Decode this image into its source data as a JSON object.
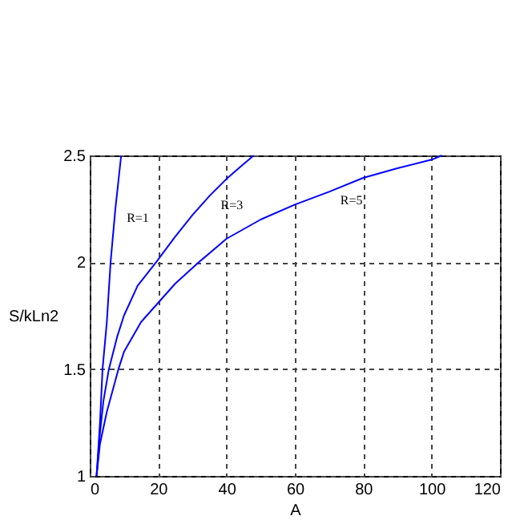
{
  "chart_data": {
    "type": "line",
    "xlabel": "A",
    "ylabel": "S/kLn2",
    "series": [
      {
        "name": "R=1",
        "color": "#0000ff",
        "x": [
          2,
          3,
          3.75,
          5,
          6.1,
          7.5,
          9.2
        ],
        "values": [
          1,
          1.25,
          1.5,
          1.72,
          2,
          2.25,
          2.5
        ]
      },
      {
        "name": "R=3",
        "color": "#0000ff",
        "x": [
          2,
          3,
          4,
          5.6,
          8,
          10,
          14,
          19.4,
          25,
          30,
          35,
          40,
          45,
          48
        ],
        "values": [
          1,
          1.2,
          1.35,
          1.5,
          1.65,
          1.75,
          1.89,
          2,
          2.12,
          2.22,
          2.31,
          2.39,
          2.46,
          2.5
        ]
      },
      {
        "name": "R=5",
        "color": "#0000ff",
        "x": [
          2,
          3,
          5,
          8.4,
          10,
          15,
          20,
          25,
          31.9,
          40,
          50,
          60,
          70,
          80,
          90,
          100,
          103
        ],
        "values": [
          1,
          1.15,
          1.3,
          1.5,
          1.58,
          1.72,
          1.81,
          1.9,
          2,
          2.11,
          2.2,
          2.27,
          2.33,
          2.395,
          2.44,
          2.48,
          2.5
        ]
      }
    ],
    "xlim": [
      0,
      120
    ],
    "xticks": [
      0,
      20,
      40,
      60,
      80,
      100,
      120
    ],
    "ylim": [
      1,
      2.5
    ],
    "yticks": [
      {
        "value": 1,
        "label": "1"
      },
      1.5,
      {
        "value": 2,
        "label": "2"
      },
      2.5
    ],
    "grid": true,
    "line_style": "solid"
  }
}
